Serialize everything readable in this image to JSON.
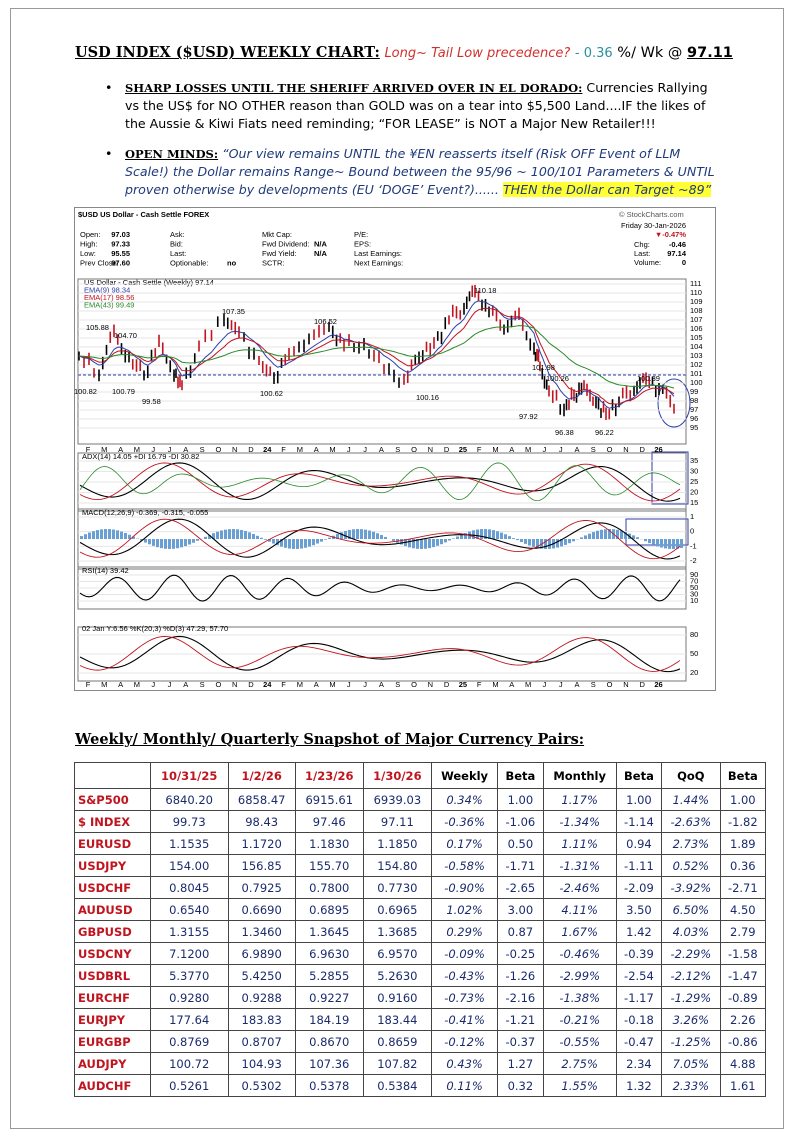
{
  "header": {
    "title": "USD INDEX ($USD) WEEKLY CHART:",
    "note": "Long~ Tail Low precedence?",
    "change": "- 0.36",
    "unit": "%/ Wk @",
    "value": "97.11"
  },
  "bullets": [
    {
      "heading": "SHARP LOSSES UNTIL THE SHERIFF ARRIVED OVER IN EL DORADO:",
      "text": "Currencies Rallying vs the US$ for NO OTHER reason than GOLD was on a tear into $5,500 Land....IF the likes of the Aussie & Kiwi Fiats need reminding; “FOR LEASE” is NOT a Major New Retailer!!!"
    },
    {
      "heading": "OPEN MINDS:",
      "text": "“Our view remains UNTIL the ¥EN reasserts itself (Risk OFF Event of LLM Scale!) the Dollar remains Range~ Bound between the 95/96 ~ 100/101 Parameters & UNTIL proven otherwise by developments (EU ‘DOGE’ Event?)...... ",
      "highlight": "THEN the Dollar can Target ~89”"
    }
  ],
  "chart": {
    "title": "$USD US Dollar - Cash Settle FOREX",
    "source": "© StockCharts.com",
    "stats": [
      [
        {
          "label": "Open:",
          "value": "97.03"
        },
        {
          "label": "High:",
          "value": "97.33"
        },
        {
          "label": "Low:",
          "value": "95.55"
        },
        {
          "label": "Prev Close:",
          "value": "97.60"
        }
      ],
      [
        {
          "label": "Ask:"
        },
        {
          "label": "Bid:"
        },
        {
          "label": "Last:"
        },
        {
          "label": "Optionable:",
          "value": "no"
        }
      ],
      [
        {
          "label": "Mkt Cap:"
        },
        {
          "label": "Fwd Dividend:",
          "value": "N/A"
        },
        {
          "label": "Fwd Yield:",
          "value": "N/A"
        },
        {
          "label": "SCTR:"
        }
      ],
      [
        {
          "label": "P/E:"
        },
        {
          "label": "EPS:"
        },
        {
          "label": "Last Earnings:"
        },
        {
          "label": "Next Earnings:"
        }
      ]
    ],
    "date": "Friday 30-Jan-2026",
    "change_pct": "▼-0.47%",
    "quote": [
      {
        "label": "Chg:",
        "value": "-0.46"
      },
      {
        "label": "Last:",
        "value": "97.14"
      },
      {
        "label": "Volume:",
        "value": "0"
      }
    ],
    "legend": [
      "US Dollar - Cash Settle (Weekly) 97.14",
      "EMA(9) 98.34",
      "EMA(17) 98.56",
      "EMA(43) 99.49"
    ],
    "price_labels": [
      "105.88",
      "104.70",
      "99.58",
      "107.35",
      "100.62",
      "106.52",
      "100.16",
      "110.18",
      "101.98",
      "97.92",
      "96.38",
      "100.26",
      "96.22",
      "100.39",
      "100.82",
      "100.79"
    ],
    "yticks": [
      111,
      110,
      109,
      108,
      107,
      106,
      105,
      104,
      103,
      102,
      101,
      100,
      99,
      98,
      97,
      96,
      95
    ],
    "months": [
      "F",
      "M",
      "A",
      "M",
      "J",
      "J",
      "A",
      "S",
      "O",
      "N",
      "D",
      "24",
      "F",
      "M",
      "A",
      "M",
      "J",
      "J",
      "A",
      "S",
      "O",
      "N",
      "D",
      "25",
      "F",
      "M",
      "A",
      "M",
      "J",
      "J",
      "A",
      "S",
      "O",
      "N",
      "D",
      "26"
    ],
    "panels": [
      {
        "label": "ADX(14) 14.05 +DI 16.79 -DI 30.82",
        "ticks": [
          35,
          30,
          25,
          20,
          15
        ]
      },
      {
        "label": "MACD(12,26,9) -0.369, -0.315, -0.055",
        "ticks": [
          1,
          0,
          -1,
          -2
        ]
      },
      {
        "label": "RSI(14) 39.42",
        "ticks": [
          90,
          70,
          50,
          30,
          10
        ]
      },
      {
        "label": "02 Jan Y:6.56 %K(20,3) %D(3) 47.29, 57.70",
        "ticks": [
          80,
          50,
          20
        ]
      }
    ]
  },
  "table": {
    "title": "Weekly/ Monthly/ Quarterly Snapshot of Major Currency Pairs:",
    "columns": [
      "10/31/25",
      "1/2/26",
      "1/23/26",
      "1/30/26",
      "Weekly",
      "Beta",
      "Monthly",
      "Beta",
      "QoQ",
      "Beta"
    ],
    "rows": [
      [
        "S&P500",
        "6840.20",
        "6858.47",
        "6915.61",
        "6939.03",
        "0.34%",
        "1.00",
        "1.17%",
        "1.00",
        "1.44%",
        "1.00"
      ],
      [
        "$ INDEX",
        "99.73",
        "98.43",
        "97.46",
        "97.11",
        "-0.36%",
        "-1.06",
        "-1.34%",
        "-1.14",
        "-2.63%",
        "-1.82"
      ],
      [
        "EURUSD",
        "1.1535",
        "1.1720",
        "1.1830",
        "1.1850",
        "0.17%",
        "0.50",
        "1.11%",
        "0.94",
        "2.73%",
        "1.89"
      ],
      [
        "USDJPY",
        "154.00",
        "156.85",
        "155.70",
        "154.80",
        "-0.58%",
        "-1.71",
        "-1.31%",
        "-1.11",
        "0.52%",
        "0.36"
      ],
      [
        "USDCHF",
        "0.8045",
        "0.7925",
        "0.7800",
        "0.7730",
        "-0.90%",
        "-2.65",
        "-2.46%",
        "-2.09",
        "-3.92%",
        "-2.71"
      ],
      [
        "AUDUSD",
        "0.6540",
        "0.6690",
        "0.6895",
        "0.6965",
        "1.02%",
        "3.00",
        "4.11%",
        "3.50",
        "6.50%",
        "4.50"
      ],
      [
        "GBPUSD",
        "1.3155",
        "1.3460",
        "1.3645",
        "1.3685",
        "0.29%",
        "0.87",
        "1.67%",
        "1.42",
        "4.03%",
        "2.79"
      ],
      [
        "USDCNY",
        "7.1200",
        "6.9890",
        "6.9630",
        "6.9570",
        "-0.09%",
        "-0.25",
        "-0.46%",
        "-0.39",
        "-2.29%",
        "-1.58"
      ],
      [
        "USDBRL",
        "5.3770",
        "5.4250",
        "5.2855",
        "5.2630",
        "-0.43%",
        "-1.26",
        "-2.99%",
        "-2.54",
        "-2.12%",
        "-1.47"
      ],
      [
        "EURCHF",
        "0.9280",
        "0.9288",
        "0.9227",
        "0.9160",
        "-0.73%",
        "-2.16",
        "-1.38%",
        "-1.17",
        "-1.29%",
        "-0.89"
      ],
      [
        "EURJPY",
        "177.64",
        "183.83",
        "184.19",
        "183.44",
        "-0.41%",
        "-1.21",
        "-0.21%",
        "-0.18",
        "3.26%",
        "2.26"
      ],
      [
        "EURGBP",
        "0.8769",
        "0.8707",
        "0.8670",
        "0.8659",
        "-0.12%",
        "-0.37",
        "-0.55%",
        "-0.47",
        "-1.25%",
        "-0.86"
      ],
      [
        "AUDJPY",
        "100.72",
        "104.93",
        "107.36",
        "107.82",
        "0.43%",
        "1.27",
        "2.75%",
        "2.34",
        "7.05%",
        "4.88"
      ],
      [
        "AUDCHF",
        "0.5261",
        "0.5302",
        "0.5378",
        "0.5384",
        "0.11%",
        "0.32",
        "1.55%",
        "1.32",
        "2.33%",
        "1.61"
      ]
    ]
  }
}
